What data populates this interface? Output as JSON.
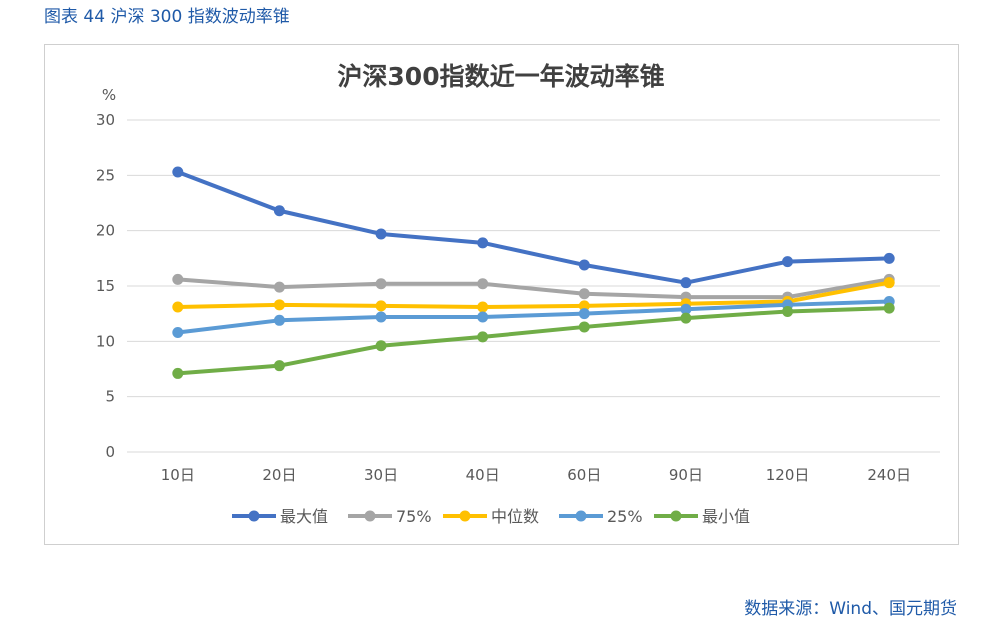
{
  "caption": "图表 44 沪深 300 指数波动率锥",
  "source": "数据来源：Wind、国元期货",
  "colors": {
    "caption": "#1f5aa8",
    "grid": "#d9d9d9",
    "axis_text": "#595959"
  },
  "chart_data": {
    "type": "line",
    "title": "沪深300指数近一年波动率锥",
    "ylabel": "%",
    "xlabel": "",
    "ylim": [
      0,
      30
    ],
    "yticks": [
      0,
      5,
      10,
      15,
      20,
      25,
      30
    ],
    "grid": true,
    "legend_position": "bottom",
    "categories": [
      "10日",
      "20日",
      "30日",
      "40日",
      "60日",
      "90日",
      "120日",
      "240日"
    ],
    "series": [
      {
        "name": "最大值",
        "color": "#4472c4",
        "values": [
          25.3,
          21.8,
          19.7,
          18.9,
          16.9,
          15.3,
          17.2,
          17.5
        ]
      },
      {
        "name": "75%",
        "color": "#a5a5a5",
        "values": [
          15.6,
          14.9,
          15.2,
          15.2,
          14.3,
          14.0,
          14.0,
          15.6
        ]
      },
      {
        "name": "中位数",
        "color": "#ffc000",
        "values": [
          13.1,
          13.3,
          13.2,
          13.1,
          13.2,
          13.4,
          13.6,
          15.3
        ]
      },
      {
        "name": "25%",
        "color": "#5b9bd5",
        "values": [
          10.8,
          11.9,
          12.2,
          12.2,
          12.5,
          12.9,
          13.3,
          13.6
        ]
      },
      {
        "name": "最小值",
        "color": "#70ad47",
        "values": [
          7.1,
          7.8,
          9.6,
          10.4,
          11.3,
          12.1,
          12.7,
          13.0
        ]
      }
    ]
  }
}
